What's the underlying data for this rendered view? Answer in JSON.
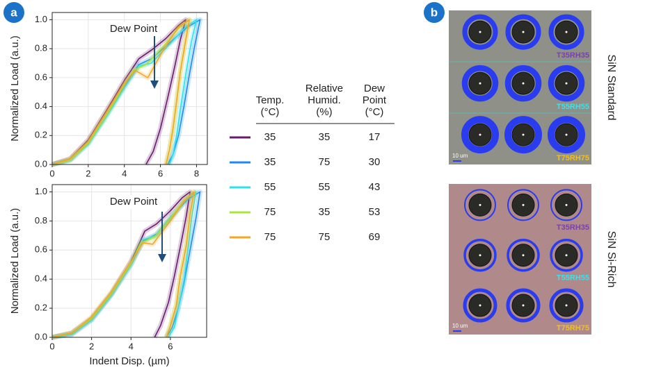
{
  "panel_labels": [
    "a",
    "b"
  ],
  "chart_data": [
    {
      "type": "line",
      "ylabel": "Normalized Load (a.u.)",
      "annotation": "Dew Point",
      "xlim": [
        0,
        8.6
      ],
      "ylim": [
        0,
        1.05
      ],
      "xticks": [
        0,
        2,
        4,
        6,
        8
      ],
      "yticks": [
        {
          "value": 0,
          "label": "0.0"
        },
        0.2,
        0.4,
        0.6,
        0.8,
        {
          "value": 1,
          "label": "1.0"
        }
      ],
      "series": [
        {
          "color": "#6a1b6e",
          "x": [
            0,
            1,
            2,
            3,
            4,
            4.8,
            5.5,
            6.3,
            7.0,
            7.4,
            7.1,
            6.8,
            6.4,
            6.0,
            5.6,
            5.2
          ],
          "values": [
            0,
            0.04,
            0.17,
            0.37,
            0.58,
            0.73,
            0.79,
            0.87,
            0.96,
            1.0,
            0.86,
            0.68,
            0.46,
            0.25,
            0.09,
            0
          ]
        },
        {
          "color": "#1e88f0",
          "x": [
            0,
            1,
            2,
            3,
            4,
            4.8,
            5.5,
            6.5,
            7.5,
            8.2,
            7.9,
            7.6,
            7.3,
            7.0,
            6.7,
            6.4
          ],
          "values": [
            0,
            0.03,
            0.15,
            0.34,
            0.54,
            0.69,
            0.73,
            0.84,
            0.95,
            1.0,
            0.82,
            0.62,
            0.4,
            0.2,
            0.07,
            0
          ]
        },
        {
          "color": "#2ee0ea",
          "x": [
            0,
            1,
            2,
            3,
            4,
            4.8,
            5.5,
            6.5,
            7.4,
            8.0,
            7.7,
            7.4,
            7.1,
            6.9,
            6.7,
            6.5
          ],
          "values": [
            0,
            0.03,
            0.14,
            0.33,
            0.53,
            0.68,
            0.7,
            0.83,
            0.95,
            1.0,
            0.84,
            0.62,
            0.38,
            0.2,
            0.07,
            0
          ]
        },
        {
          "color": "#a8e63a",
          "x": [
            0,
            1,
            2,
            3,
            4,
            4.5,
            5.2,
            6.2,
            7.0,
            7.6,
            7.4,
            7.1,
            6.9,
            6.7,
            6.5,
            6.3
          ],
          "values": [
            0,
            0.03,
            0.15,
            0.34,
            0.55,
            0.65,
            0.69,
            0.82,
            0.94,
            1.0,
            0.86,
            0.64,
            0.44,
            0.25,
            0.1,
            0
          ]
        },
        {
          "color": "#f5a623",
          "x": [
            0,
            1,
            2,
            3,
            4,
            4.6,
            5.3,
            6.2,
            7.0,
            7.6,
            7.4,
            7.1,
            6.9,
            6.7,
            6.5,
            6.3
          ],
          "values": [
            0,
            0.04,
            0.16,
            0.36,
            0.56,
            0.65,
            0.6,
            0.8,
            0.95,
            1.0,
            0.86,
            0.64,
            0.44,
            0.25,
            0.1,
            0
          ]
        }
      ]
    },
    {
      "type": "line",
      "ylabel": "Normalized Load (a.u.)",
      "xlabel": "Indent Disp. (µm)",
      "annotation": "Dew Point",
      "xlim": [
        0,
        7.84
      ],
      "ylim": [
        0,
        1.05
      ],
      "xticks": [
        0,
        2,
        4,
        6
      ],
      "yticks": [
        {
          "value": 0,
          "label": "0.0"
        },
        0.2,
        0.4,
        0.6,
        0.8,
        {
          "value": 1,
          "label": "1.0"
        }
      ],
      "series": [
        {
          "color": "#6a1b6e",
          "x": [
            0,
            1,
            2,
            3,
            4,
            4.7,
            5.3,
            6.0,
            6.6,
            7.0,
            6.8,
            6.5,
            6.2,
            5.9,
            5.5,
            5.2
          ],
          "values": [
            0,
            0.03,
            0.13,
            0.3,
            0.52,
            0.73,
            0.78,
            0.87,
            0.96,
            1.0,
            0.83,
            0.62,
            0.42,
            0.24,
            0.08,
            0
          ]
        },
        {
          "color": "#1e88f0",
          "x": [
            0,
            1,
            2,
            3,
            4,
            4.6,
            5.3,
            6.1,
            6.9,
            7.5,
            7.3,
            7.0,
            6.7,
            6.4,
            6.1,
            5.8
          ],
          "values": [
            0,
            0.02,
            0.12,
            0.29,
            0.5,
            0.66,
            0.71,
            0.84,
            0.95,
            1.0,
            0.82,
            0.6,
            0.38,
            0.2,
            0.07,
            0
          ]
        },
        {
          "color": "#2ee0ea",
          "x": [
            0,
            1,
            2,
            3,
            4,
            4.6,
            5.3,
            6.1,
            6.8,
            7.3,
            7.1,
            6.9,
            6.7,
            6.4,
            6.2,
            5.9
          ],
          "values": [
            0,
            0.02,
            0.12,
            0.29,
            0.5,
            0.67,
            0.7,
            0.83,
            0.95,
            1.0,
            0.84,
            0.62,
            0.4,
            0.2,
            0.07,
            0
          ]
        },
        {
          "color": "#a8e63a",
          "x": [
            0,
            1,
            2,
            3,
            4,
            4.5,
            5.2,
            6.0,
            6.7,
            7.2,
            7.0,
            6.8,
            6.5,
            6.3,
            6.0,
            5.8
          ],
          "values": [
            0,
            0.03,
            0.13,
            0.3,
            0.51,
            0.65,
            0.69,
            0.82,
            0.94,
            1.0,
            0.85,
            0.63,
            0.42,
            0.22,
            0.08,
            0
          ]
        },
        {
          "color": "#f5a623",
          "x": [
            0,
            1,
            2,
            3,
            4,
            4.6,
            5.1,
            6.0,
            6.7,
            7.2,
            7.0,
            6.8,
            6.5,
            6.3,
            6.0,
            5.8
          ],
          "values": [
            0,
            0.03,
            0.14,
            0.31,
            0.52,
            0.65,
            0.64,
            0.8,
            0.94,
            1.0,
            0.85,
            0.63,
            0.42,
            0.22,
            0.08,
            0
          ]
        }
      ]
    }
  ],
  "legend_table": {
    "headers": [
      [
        "Temp.",
        "(°C)"
      ],
      [
        "Relative",
        "Humid.",
        "(%)"
      ],
      [
        "Dew",
        "Point",
        "(°C)"
      ]
    ],
    "rows": [
      {
        "color": "#6a1b6e",
        "cells": [
          "35",
          "35",
          "17"
        ]
      },
      {
        "color": "#1e88f0",
        "cells": [
          "35",
          "75",
          "30"
        ]
      },
      {
        "color": "#2ee0ea",
        "cells": [
          "55",
          "55",
          "43"
        ]
      },
      {
        "color": "#a8e63a",
        "cells": [
          "75",
          "35",
          "53"
        ]
      },
      {
        "color": "#f5a623",
        "cells": [
          "75",
          "75",
          "69"
        ]
      }
    ]
  },
  "micrographs": [
    {
      "title": "SiN Standard",
      "scale_bar": "10 um",
      "background": "#8f9088",
      "labels": [
        {
          "text": "T35RH35",
          "color": "#7b3fb0"
        },
        {
          "text": "T55RH55",
          "color": "#3fe0e8"
        },
        {
          "text": "T75RH75",
          "color": "#f0c020"
        }
      ]
    },
    {
      "title": "SiN Si-Rich",
      "scale_bar": "10 um",
      "background": "#b08a8a",
      "labels": [
        {
          "text": "T35RH35",
          "color": "#7b3fb0"
        },
        {
          "text": "T55RH55",
          "color": "#3fe0e8"
        },
        {
          "text": "T75RH75",
          "color": "#f0c020"
        }
      ]
    }
  ]
}
